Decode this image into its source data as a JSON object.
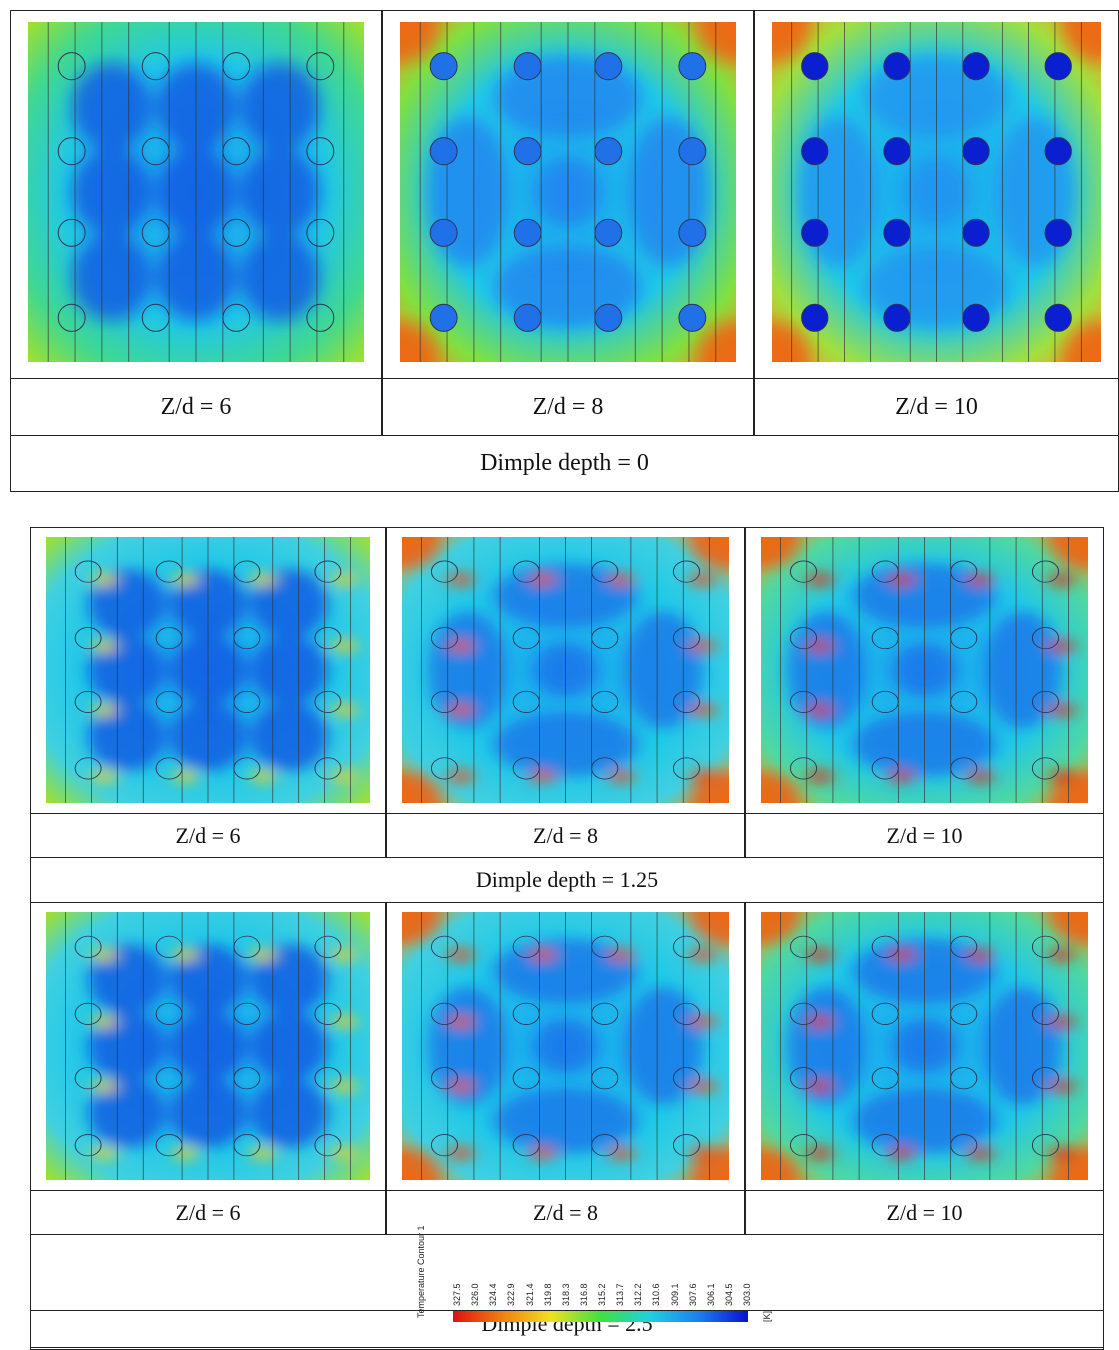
{
  "table1": {
    "labels": [
      "Z/d = 6",
      "Z/d = 8",
      "Z/d = 10"
    ],
    "caption": "Dimple depth  = 0"
  },
  "table2": {
    "labels_row1": [
      "Z/d = 6",
      "Z/d = 8",
      "Z/d = 10"
    ],
    "caption_row1": "Dimple depth  = 1.25",
    "labels_row2": [
      "Z/d = 6",
      "Z/d = 8",
      "Z/d = 10"
    ],
    "caption_row2": "Dimple depth  = 2.5"
  },
  "legend": {
    "title": "Temperature Contour 1",
    "unit": "[K]",
    "ticks": [
      "327.5",
      "326.0",
      "324.4",
      "322.9",
      "321.4",
      "319.8",
      "318.3",
      "316.8",
      "315.2",
      "313.7",
      "312.2",
      "310.6",
      "309.1",
      "307.6",
      "306.1",
      "304.5",
      "303.0"
    ]
  }
}
